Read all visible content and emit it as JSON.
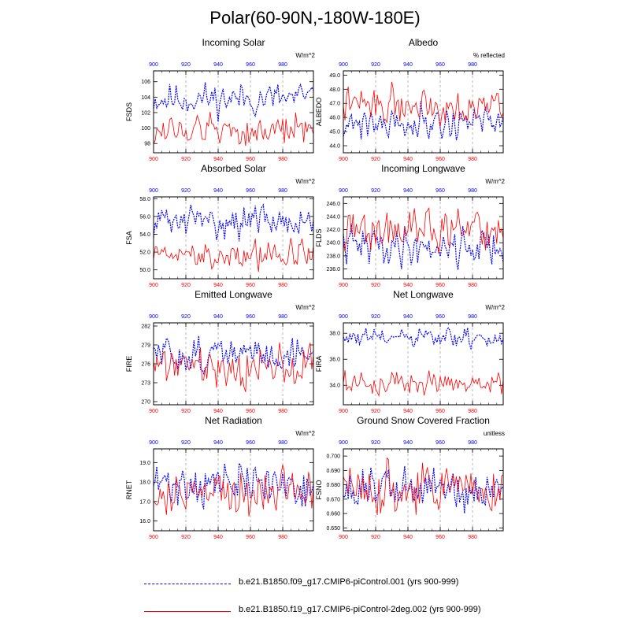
{
  "title": "Polar(60-90N,-180W-180E)",
  "colors": {
    "series1": "#0000ff",
    "series2": "#ff0000",
    "axis": "#000000",
    "grid": "#999999"
  },
  "legend": [
    {
      "label": "b.e21.B1850.f09_g17.CMIP6-piControl.001 (yrs 900-999)",
      "color": "#0000ff",
      "style": "dashed"
    },
    {
      "label": "b.e21.B1850.f19_g17.CMIP6-piControl-2deg.002 (yrs 900-999)",
      "color": "#ff0000",
      "style": "solid"
    }
  ],
  "chart_data": [
    {
      "type": "line",
      "title": "Incoming Solar",
      "ylabel": "FSDS",
      "units": "W/m^2",
      "ylim": [
        96.8,
        107.4
      ],
      "yticks": [
        98,
        100,
        102,
        104,
        106
      ],
      "ytick_labels": [
        "98",
        "100",
        "102",
        "104",
        "106"
      ],
      "xlim": [
        900,
        999
      ],
      "xticks": [
        900,
        920,
        940,
        960,
        980
      ],
      "xtick_labels": [
        "900",
        "920",
        "940",
        "960",
        "980"
      ],
      "series": [
        {
          "name": "f09_g17.001",
          "color": "#0000ff",
          "dashed": true,
          "mean": 103.8,
          "amp": 1.2,
          "seed": 11
        },
        {
          "name": "f19_g17-2deg.002",
          "color": "#ff0000",
          "dashed": false,
          "mean": 99.7,
          "amp": 1.2,
          "seed": 12
        }
      ]
    },
    {
      "type": "line",
      "title": "Albedo",
      "ylabel": "ALBEDO",
      "units": "% reflected",
      "ylim": [
        43.5,
        49.3
      ],
      "yticks": [
        44,
        45,
        46,
        47,
        48,
        49
      ],
      "ytick_labels": [
        "44.0",
        "45.0",
        "46.0",
        "47.0",
        "48.0",
        "49.0"
      ],
      "xlim": [
        900,
        999
      ],
      "xticks": [
        900,
        920,
        940,
        960,
        980
      ],
      "xtick_labels": [
        "900",
        "920",
        "940",
        "960",
        "980"
      ],
      "series": [
        {
          "name": "f09_g17.001",
          "color": "#0000ff",
          "dashed": true,
          "mean": 45.7,
          "amp": 0.7,
          "seed": 21
        },
        {
          "name": "f19_g17-2deg.002",
          "color": "#ff0000",
          "dashed": false,
          "mean": 46.9,
          "amp": 0.7,
          "seed": 22
        }
      ]
    },
    {
      "type": "line",
      "title": "Absorbed Solar",
      "ylabel": "FSA",
      "units": "W/m^2",
      "ylim": [
        49.0,
        58.2
      ],
      "yticks": [
        50,
        52,
        54,
        56,
        58
      ],
      "ytick_labels": [
        "50.0",
        "52.0",
        "54.0",
        "56.0",
        "58.0"
      ],
      "xlim": [
        900,
        999
      ],
      "xticks": [
        900,
        920,
        940,
        960,
        980
      ],
      "xtick_labels": [
        "900",
        "920",
        "940",
        "960",
        "980"
      ],
      "series": [
        {
          "name": "f09_g17.001",
          "color": "#0000ff",
          "dashed": true,
          "mean": 55.5,
          "amp": 1.0,
          "seed": 31
        },
        {
          "name": "f19_g17-2deg.002",
          "color": "#ff0000",
          "dashed": false,
          "mean": 51.7,
          "amp": 1.0,
          "seed": 32
        }
      ]
    },
    {
      "type": "line",
      "title": "Incoming Longwave",
      "ylabel": "FLDS",
      "units": "W/m^2",
      "ylim": [
        234.5,
        247.0
      ],
      "yticks": [
        236,
        238,
        240,
        242,
        244,
        246
      ],
      "ytick_labels": [
        "236.0",
        "238.0",
        "240.0",
        "242.0",
        "244.0",
        "246.0"
      ],
      "xlim": [
        900,
        999
      ],
      "xticks": [
        900,
        920,
        940,
        960,
        980
      ],
      "xtick_labels": [
        "900",
        "920",
        "940",
        "960",
        "980"
      ],
      "series": [
        {
          "name": "f09_g17.001",
          "color": "#0000ff",
          "dashed": true,
          "mean": 239.5,
          "amp": 1.7,
          "seed": 41
        },
        {
          "name": "f19_g17-2deg.002",
          "color": "#ff0000",
          "dashed": false,
          "mean": 241.8,
          "amp": 1.8,
          "seed": 42
        }
      ]
    },
    {
      "type": "line",
      "title": "Emitted Longwave",
      "ylabel": "FIRE",
      "units": "W/m^2",
      "ylim": [
        269.5,
        282.5
      ],
      "yticks": [
        270,
        273,
        276,
        279,
        282
      ],
      "ytick_labels": [
        "270",
        "273",
        "276",
        "279",
        "282"
      ],
      "xlim": [
        900,
        999
      ],
      "xticks": [
        900,
        920,
        940,
        960,
        980
      ],
      "xtick_labels": [
        "900",
        "920",
        "940",
        "960",
        "980"
      ],
      "series": [
        {
          "name": "f09_g17.001",
          "color": "#0000ff",
          "dashed": true,
          "mean": 277.5,
          "amp": 1.6,
          "seed": 51
        },
        {
          "name": "f19_g17-2deg.002",
          "color": "#ff0000",
          "dashed": false,
          "mean": 275.8,
          "amp": 1.8,
          "seed": 52
        }
      ]
    },
    {
      "type": "line",
      "title": "Net Longwave",
      "ylabel": "FIRA",
      "units": "W/m^2",
      "ylim": [
        32.5,
        38.8
      ],
      "yticks": [
        34,
        36,
        38
      ],
      "ytick_labels": [
        "34.0",
        "36.0",
        "38.0"
      ],
      "xlim": [
        900,
        999
      ],
      "xticks": [
        900,
        920,
        940,
        960,
        980
      ],
      "xtick_labels": [
        "900",
        "920",
        "940",
        "960",
        "980"
      ],
      "series": [
        {
          "name": "f09_g17.001",
          "color": "#0000ff",
          "dashed": true,
          "mean": 37.6,
          "amp": 0.45,
          "seed": 61
        },
        {
          "name": "f19_g17-2deg.002",
          "color": "#ff0000",
          "dashed": false,
          "mean": 34.2,
          "amp": 0.5,
          "seed": 62
        }
      ]
    },
    {
      "type": "line",
      "title": "Net Radiation",
      "ylabel": "RNET",
      "units": "W/m^2",
      "ylim": [
        15.5,
        19.7
      ],
      "yticks": [
        16,
        17,
        18,
        19
      ],
      "ytick_labels": [
        "16.0",
        "17.0",
        "18.0",
        "19.0"
      ],
      "xlim": [
        900,
        999
      ],
      "xticks": [
        900,
        920,
        940,
        960,
        980
      ],
      "xtick_labels": [
        "900",
        "920",
        "940",
        "960",
        "980"
      ],
      "series": [
        {
          "name": "f09_g17.001",
          "color": "#0000ff",
          "dashed": true,
          "mean": 17.9,
          "amp": 0.65,
          "seed": 71
        },
        {
          "name": "f19_g17-2deg.002",
          "color": "#ff0000",
          "dashed": false,
          "mean": 17.4,
          "amp": 0.7,
          "seed": 72
        }
      ]
    },
    {
      "type": "line",
      "title": "Ground Snow Covered Fraction",
      "ylabel": "FSNO",
      "units": "unitless",
      "ylim": [
        0.648,
        0.705
      ],
      "yticks": [
        0.65,
        0.66,
        0.67,
        0.68,
        0.69,
        0.7
      ],
      "ytick_labels": [
        "0.650",
        "0.660",
        "0.670",
        "0.680",
        "0.690",
        "0.700"
      ],
      "xlim": [
        900,
        999
      ],
      "xticks": [
        900,
        920,
        940,
        960,
        980
      ],
      "xtick_labels": [
        "900",
        "920",
        "940",
        "960",
        "980"
      ],
      "series": [
        {
          "name": "f09_g17.001",
          "color": "#0000ff",
          "dashed": true,
          "mean": 0.677,
          "amp": 0.009,
          "seed": 81
        },
        {
          "name": "f19_g17-2deg.002",
          "color": "#ff0000",
          "dashed": false,
          "mean": 0.678,
          "amp": 0.01,
          "seed": 82
        }
      ]
    }
  ]
}
